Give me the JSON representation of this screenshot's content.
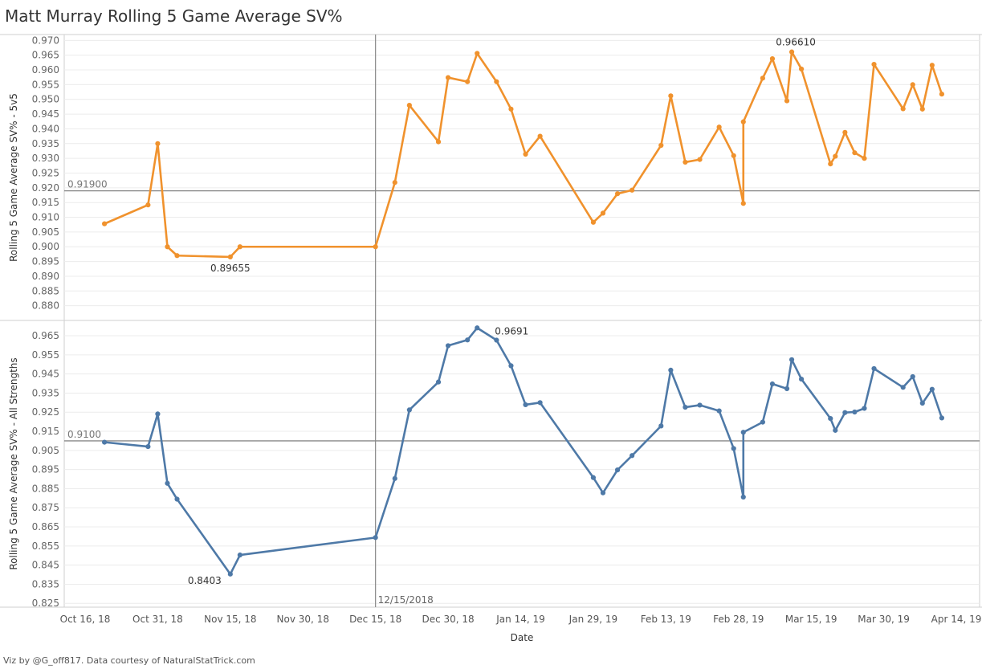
{
  "title": "Matt Murray Rolling 5 Game Average SV%",
  "footer": "Viz by @G_off817. Data courtesy of NaturalStatTrick.com",
  "colors": {
    "top": "#f0922d",
    "bottom": "#4e79a7",
    "refline": "#888888",
    "grid": "#ececec"
  },
  "chart_data": [
    {
      "type": "line",
      "ylabel": "Rolling 5 Game Average SV% - 5v5",
      "xlabel": "Date",
      "ylim": [
        0.875,
        0.972
      ],
      "yticks": [
        0.97,
        0.965,
        0.96,
        0.955,
        0.95,
        0.945,
        0.94,
        0.935,
        0.93,
        0.925,
        0.92,
        0.915,
        0.91,
        0.905,
        0.9,
        0.895,
        0.89,
        0.885,
        0.88
      ],
      "yticklabels": [
        "0.970",
        "0.965",
        "0.960",
        "0.955",
        "0.950",
        "0.945",
        "0.940",
        "0.935",
        "0.930",
        "0.925",
        "0.920",
        "0.915",
        "0.910",
        "0.905",
        "0.900",
        "0.895",
        "0.890",
        "0.885",
        "0.880"
      ],
      "reference_line": {
        "value": 0.919,
        "label": "0.91900"
      },
      "annotations": [
        {
          "text": "0.96610",
          "x": "2019-03-11",
          "y": 0.9661
        },
        {
          "text": "0.89655",
          "x": "2018-11-15",
          "y": 0.89655
        }
      ],
      "series": [
        {
          "x": [
            "2018-10-20",
            "2018-10-29",
            "2018-10-31",
            "2018-11-02",
            "2018-11-04",
            "2018-11-15",
            "2018-11-17",
            "2018-12-15",
            "2018-12-19",
            "2018-12-22",
            "2018-12-28",
            "2018-12-30",
            "2019-01-03",
            "2019-01-05",
            "2019-01-09",
            "2019-01-12",
            "2019-01-15",
            "2019-01-18",
            "2019-01-29",
            "2019-01-31",
            "2019-02-03",
            "2019-02-06",
            "2019-02-12",
            "2019-02-14",
            "2019-02-17",
            "2019-02-20",
            "2019-02-24",
            "2019-02-27",
            "2019-02-29",
            "2019-03-01",
            "2019-03-05",
            "2019-03-07",
            "2019-03-10",
            "2019-03-11",
            "2019-03-13",
            "2019-03-19",
            "2019-03-20",
            "2019-03-22",
            "2019-03-24",
            "2019-03-26",
            "2019-03-28",
            "2019-04-03",
            "2019-04-05",
            "2019-04-07",
            "2019-04-09",
            "2019-04-11"
          ],
          "values": [
            0.9078,
            0.9142,
            0.935,
            0.9,
            0.897,
            0.89655,
            0.9,
            0.9,
            0.9218,
            0.948,
            0.9356,
            0.9574,
            0.956,
            0.9656,
            0.956,
            0.9467,
            0.9314,
            0.9375,
            0.9083,
            0.9114,
            0.918,
            0.9192,
            0.9344,
            0.9512,
            0.9287,
            0.9296,
            0.9406,
            0.9309,
            0.9147,
            0.9424,
            0.9572,
            0.9638,
            0.9495,
            0.9661,
            0.9603,
            0.9281,
            0.9307,
            0.9388,
            0.9319,
            0.93,
            0.9619,
            0.9468,
            0.955,
            0.9467,
            0.9616,
            0.9518
          ]
        }
      ]
    },
    {
      "type": "line",
      "ylabel": "Rolling 5 Game Average SV% - All Strengths",
      "xlabel": "Date",
      "ylim": [
        0.823,
        0.973
      ],
      "yticks": [
        0.965,
        0.955,
        0.945,
        0.935,
        0.925,
        0.915,
        0.905,
        0.895,
        0.885,
        0.875,
        0.865,
        0.855,
        0.845,
        0.835,
        0.825
      ],
      "yticklabels": [
        "0.965",
        "0.955",
        "0.945",
        "0.935",
        "0.925",
        "0.915",
        "0.905",
        "0.895",
        "0.885",
        "0.875",
        "0.865",
        "0.855",
        "0.845",
        "0.835",
        "0.825"
      ],
      "reference_line": {
        "value": 0.91,
        "label": "0.9100"
      },
      "date_marker": {
        "x": "2018-12-15",
        "label": "12/15/2018"
      },
      "annotations": [
        {
          "text": "0.9691",
          "x": "2019-01-05",
          "y": 0.9691
        },
        {
          "text": "0.8403",
          "x": "2018-11-15",
          "y": 0.8403
        }
      ],
      "xticks": [
        "2018-10-16",
        "2018-10-31",
        "2018-11-15",
        "2018-11-30",
        "2018-12-15",
        "2018-12-30",
        "2019-01-14",
        "2019-01-29",
        "2019-02-13",
        "2019-02-28",
        "2019-03-15",
        "2019-03-30",
        "2019-04-14"
      ],
      "xticklabels": [
        "Oct 16, 18",
        "Oct 31, 18",
        "Nov 15, 18",
        "Nov 30, 18",
        "Dec 15, 18",
        "Dec 30, 18",
        "Jan 14, 19",
        "Jan 29, 19",
        "Feb 13, 19",
        "Feb 28, 19",
        "Mar 15, 19",
        "Mar 30, 19",
        "Apr 14, 19"
      ],
      "series": [
        {
          "x": [
            "2018-10-20",
            "2018-10-29",
            "2018-10-31",
            "2018-11-02",
            "2018-11-04",
            "2018-11-15",
            "2018-11-17",
            "2018-12-15",
            "2018-12-19",
            "2018-12-22",
            "2018-12-28",
            "2018-12-30",
            "2019-01-03",
            "2019-01-05",
            "2019-01-09",
            "2019-01-12",
            "2019-01-15",
            "2019-01-18",
            "2019-01-29",
            "2019-01-31",
            "2019-02-03",
            "2019-02-06",
            "2019-02-12",
            "2019-02-14",
            "2019-02-17",
            "2019-02-20",
            "2019-02-24",
            "2019-02-27",
            "2019-02-29",
            "2019-03-01",
            "2019-03-05",
            "2019-03-07",
            "2019-03-10",
            "2019-03-11",
            "2019-03-13",
            "2019-03-19",
            "2019-03-20",
            "2019-03-22",
            "2019-03-24",
            "2019-03-26",
            "2019-03-28",
            "2019-04-03",
            "2019-04-05",
            "2019-04-07",
            "2019-04-09",
            "2019-04-11"
          ],
          "values": [
            0.9093,
            0.907,
            0.9241,
            0.8878,
            0.8795,
            0.8403,
            0.8503,
            0.8594,
            0.8903,
            0.9262,
            0.9408,
            0.9598,
            0.9628,
            0.9691,
            0.9627,
            0.9493,
            0.9289,
            0.93,
            0.8908,
            0.8828,
            0.8948,
            0.9023,
            0.9178,
            0.947,
            0.9276,
            0.9287,
            0.9257,
            0.906,
            0.8806,
            0.9145,
            0.9198,
            0.9398,
            0.9373,
            0.9525,
            0.9423,
            0.9217,
            0.9155,
            0.9248,
            0.9251,
            0.927,
            0.9478,
            0.938,
            0.9436,
            0.9297,
            0.937,
            0.922
          ]
        }
      ]
    }
  ]
}
